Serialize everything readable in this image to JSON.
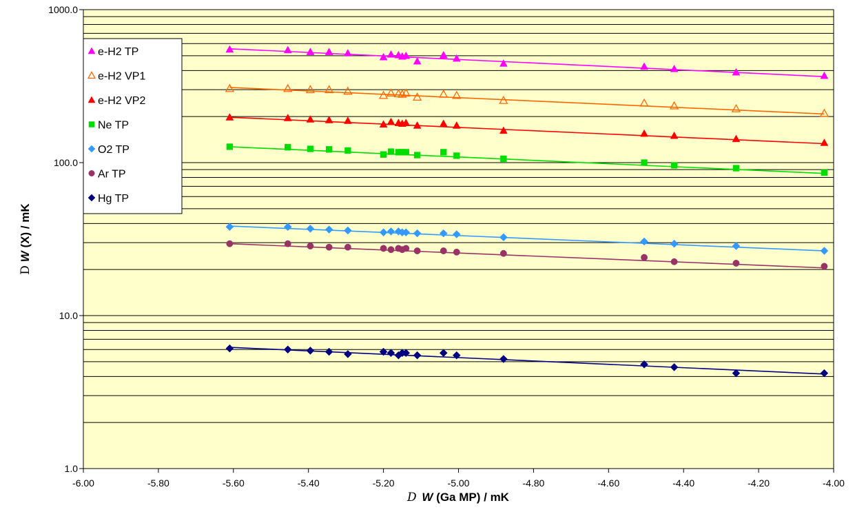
{
  "chart_data": {
    "type": "scatter",
    "xlabel": {
      "delta": "D",
      "var": "W",
      "rest": "(Ga MP) / mK"
    },
    "ylabel": {
      "delta": "D",
      "var": "W",
      "rest": "(X) / mK"
    },
    "xlim": [
      -6.0,
      -4.0
    ],
    "ylim": [
      1.0,
      1000.0
    ],
    "yscale": "log",
    "x_ticks": [
      "-6.00",
      "-5.80",
      "-5.60",
      "-5.40",
      "-5.20",
      "-5.00",
      "-4.80",
      "-4.60",
      "-4.40",
      "-4.20",
      "-4.00"
    ],
    "y_ticks": [
      "1.0",
      "10.0",
      "100.0",
      "1000.0"
    ],
    "grid": "horizontal",
    "legend_position": "top-left",
    "background": "#ffffcc",
    "x": [
      -5.61,
      -5.455,
      -5.395,
      -5.345,
      -5.295,
      -5.2,
      -5.18,
      -5.16,
      -5.15,
      -5.14,
      -5.11,
      -5.04,
      -5.005,
      -4.88,
      -4.505,
      -4.425,
      -4.26,
      -4.025
    ],
    "series": [
      {
        "name": "e-H2 TP",
        "color": "#ff00ff",
        "marker": "triangle",
        "filled": true,
        "values": [
          550,
          545,
          530,
          530,
          520,
          490,
          510,
          505,
          495,
          500,
          460,
          505,
          480,
          445,
          425,
          410,
          390,
          370
        ],
        "fit": [
          555,
          365
        ]
      },
      {
        "name": "e-H2 VP1",
        "color": "#ff6600",
        "marker": "triangle",
        "filled": false,
        "values": [
          305,
          305,
          300,
          300,
          293,
          275,
          285,
          282,
          280,
          285,
          268,
          280,
          275,
          255,
          245,
          235,
          225,
          210
        ],
        "fit": [
          310,
          208
        ]
      },
      {
        "name": "e-H2 VP2",
        "color": "#ff0000",
        "marker": "triangle",
        "filled": true,
        "values": [
          198,
          196,
          192,
          190,
          188,
          178,
          185,
          182,
          180,
          182,
          175,
          180,
          175,
          162,
          155,
          150,
          143,
          135
        ],
        "fit": [
          198,
          133
        ]
      },
      {
        "name": "Ne TP",
        "color": "#00dd00",
        "marker": "square",
        "filled": true,
        "values": [
          127,
          126,
          123,
          122,
          120,
          113,
          118,
          117,
          117,
          117,
          112,
          117,
          111,
          106,
          100,
          96,
          92,
          86
        ],
        "fit": [
          127,
          85
        ]
      },
      {
        "name": "O2 TP",
        "color": "#3399ff",
        "marker": "diamond",
        "filled": true,
        "values": [
          38,
          38,
          37,
          36.5,
          36,
          35,
          35.5,
          35.5,
          35,
          35,
          34.5,
          34.5,
          34,
          32.5,
          30.5,
          29.5,
          28.5,
          26.5
        ],
        "fit": [
          38.5,
          26.5
        ]
      },
      {
        "name": "Ar TP",
        "color": "#993366",
        "marker": "circle",
        "filled": true,
        "values": [
          29.5,
          29.5,
          28.5,
          28,
          28,
          27.5,
          27,
          27.5,
          27,
          27.5,
          26.5,
          26.5,
          26,
          25.5,
          24,
          22.5,
          22,
          21
        ],
        "fit": [
          29.5,
          20.5
        ]
      },
      {
        "name": "Hg TP",
        "color": "#000080",
        "marker": "diamond",
        "filled": true,
        "values": [
          6.1,
          6.0,
          5.9,
          5.8,
          5.6,
          5.8,
          5.7,
          5.5,
          5.7,
          5.7,
          5.5,
          5.7,
          5.5,
          5.2,
          4.8,
          4.6,
          4.2,
          4.2
        ],
        "fit": [
          6.2,
          4.15
        ]
      }
    ]
  }
}
